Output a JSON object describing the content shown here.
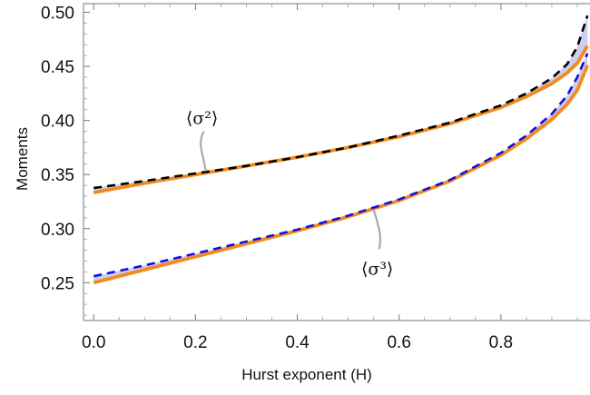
{
  "chart_data": {
    "type": "line",
    "xlabel": "Hurst exponent (H)",
    "ylabel": "Moments",
    "xlim": [
      -0.02,
      0.975
    ],
    "ylim": [
      0.215,
      0.508
    ],
    "x_ticks": [
      0.0,
      0.2,
      0.4,
      0.6,
      0.8
    ],
    "x_tick_labels": [
      "0.0",
      "0.2",
      "0.4",
      "0.6",
      "0.8"
    ],
    "y_ticks": [
      0.25,
      0.3,
      0.35,
      0.4,
      0.45,
      0.5
    ],
    "y_tick_labels": [
      "0.25",
      "0.30",
      "0.35",
      "0.40",
      "0.45",
      "0.50"
    ],
    "grid": false,
    "frame": "box",
    "annotations": [
      {
        "text": "⟨σ²⟩",
        "points_to_x": 0.22,
        "points_to_y": 0.353
      },
      {
        "text": "⟨σ³⟩",
        "points_to_x": 0.55,
        "points_to_y": 0.318
      }
    ],
    "series": [
      {
        "id": "m2_approx",
        "color": "#000000",
        "style": "dashed",
        "x": [
          0,
          0.1,
          0.2,
          0.3,
          0.4,
          0.5,
          0.6,
          0.7,
          0.8,
          0.85,
          0.9,
          0.93,
          0.95,
          0.97
        ],
        "y": [
          0.3375,
          0.344,
          0.351,
          0.358,
          0.366,
          0.375,
          0.386,
          0.398,
          0.414,
          0.425,
          0.439,
          0.452,
          0.468,
          0.497
        ]
      },
      {
        "id": "m2_exact",
        "color": "#f28a1e",
        "style": "solid",
        "x": [
          0,
          0.1,
          0.2,
          0.3,
          0.4,
          0.5,
          0.6,
          0.7,
          0.8,
          0.85,
          0.9,
          0.93,
          0.95,
          0.97
        ],
        "y": [
          0.3333,
          0.342,
          0.35,
          0.358,
          0.366,
          0.375,
          0.385,
          0.397,
          0.412,
          0.422,
          0.434,
          0.444,
          0.453,
          0.469
        ]
      },
      {
        "id": "m3_approx",
        "color": "#1010e0",
        "style": "dashed",
        "x": [
          0,
          0.1,
          0.2,
          0.3,
          0.4,
          0.5,
          0.6,
          0.7,
          0.8,
          0.85,
          0.9,
          0.93,
          0.95,
          0.97
        ],
        "y": [
          0.256,
          0.266,
          0.277,
          0.288,
          0.299,
          0.312,
          0.327,
          0.345,
          0.37,
          0.386,
          0.406,
          0.423,
          0.44,
          0.462
        ]
      },
      {
        "id": "m3_exact",
        "color": "#f28a1e",
        "style": "solid",
        "x": [
          0,
          0.1,
          0.2,
          0.3,
          0.4,
          0.5,
          0.6,
          0.7,
          0.8,
          0.85,
          0.9,
          0.93,
          0.95,
          0.97
        ],
        "y": [
          0.25,
          0.262,
          0.274,
          0.286,
          0.298,
          0.311,
          0.326,
          0.344,
          0.368,
          0.383,
          0.401,
          0.415,
          0.428,
          0.451
        ]
      }
    ],
    "shaded_regions": [
      {
        "between": [
          "m2_exact",
          "m2_approx"
        ],
        "color": "#c8c8f0"
      },
      {
        "between": [
          "m3_exact",
          "m3_approx"
        ],
        "color": "#c8c8f0"
      }
    ]
  }
}
